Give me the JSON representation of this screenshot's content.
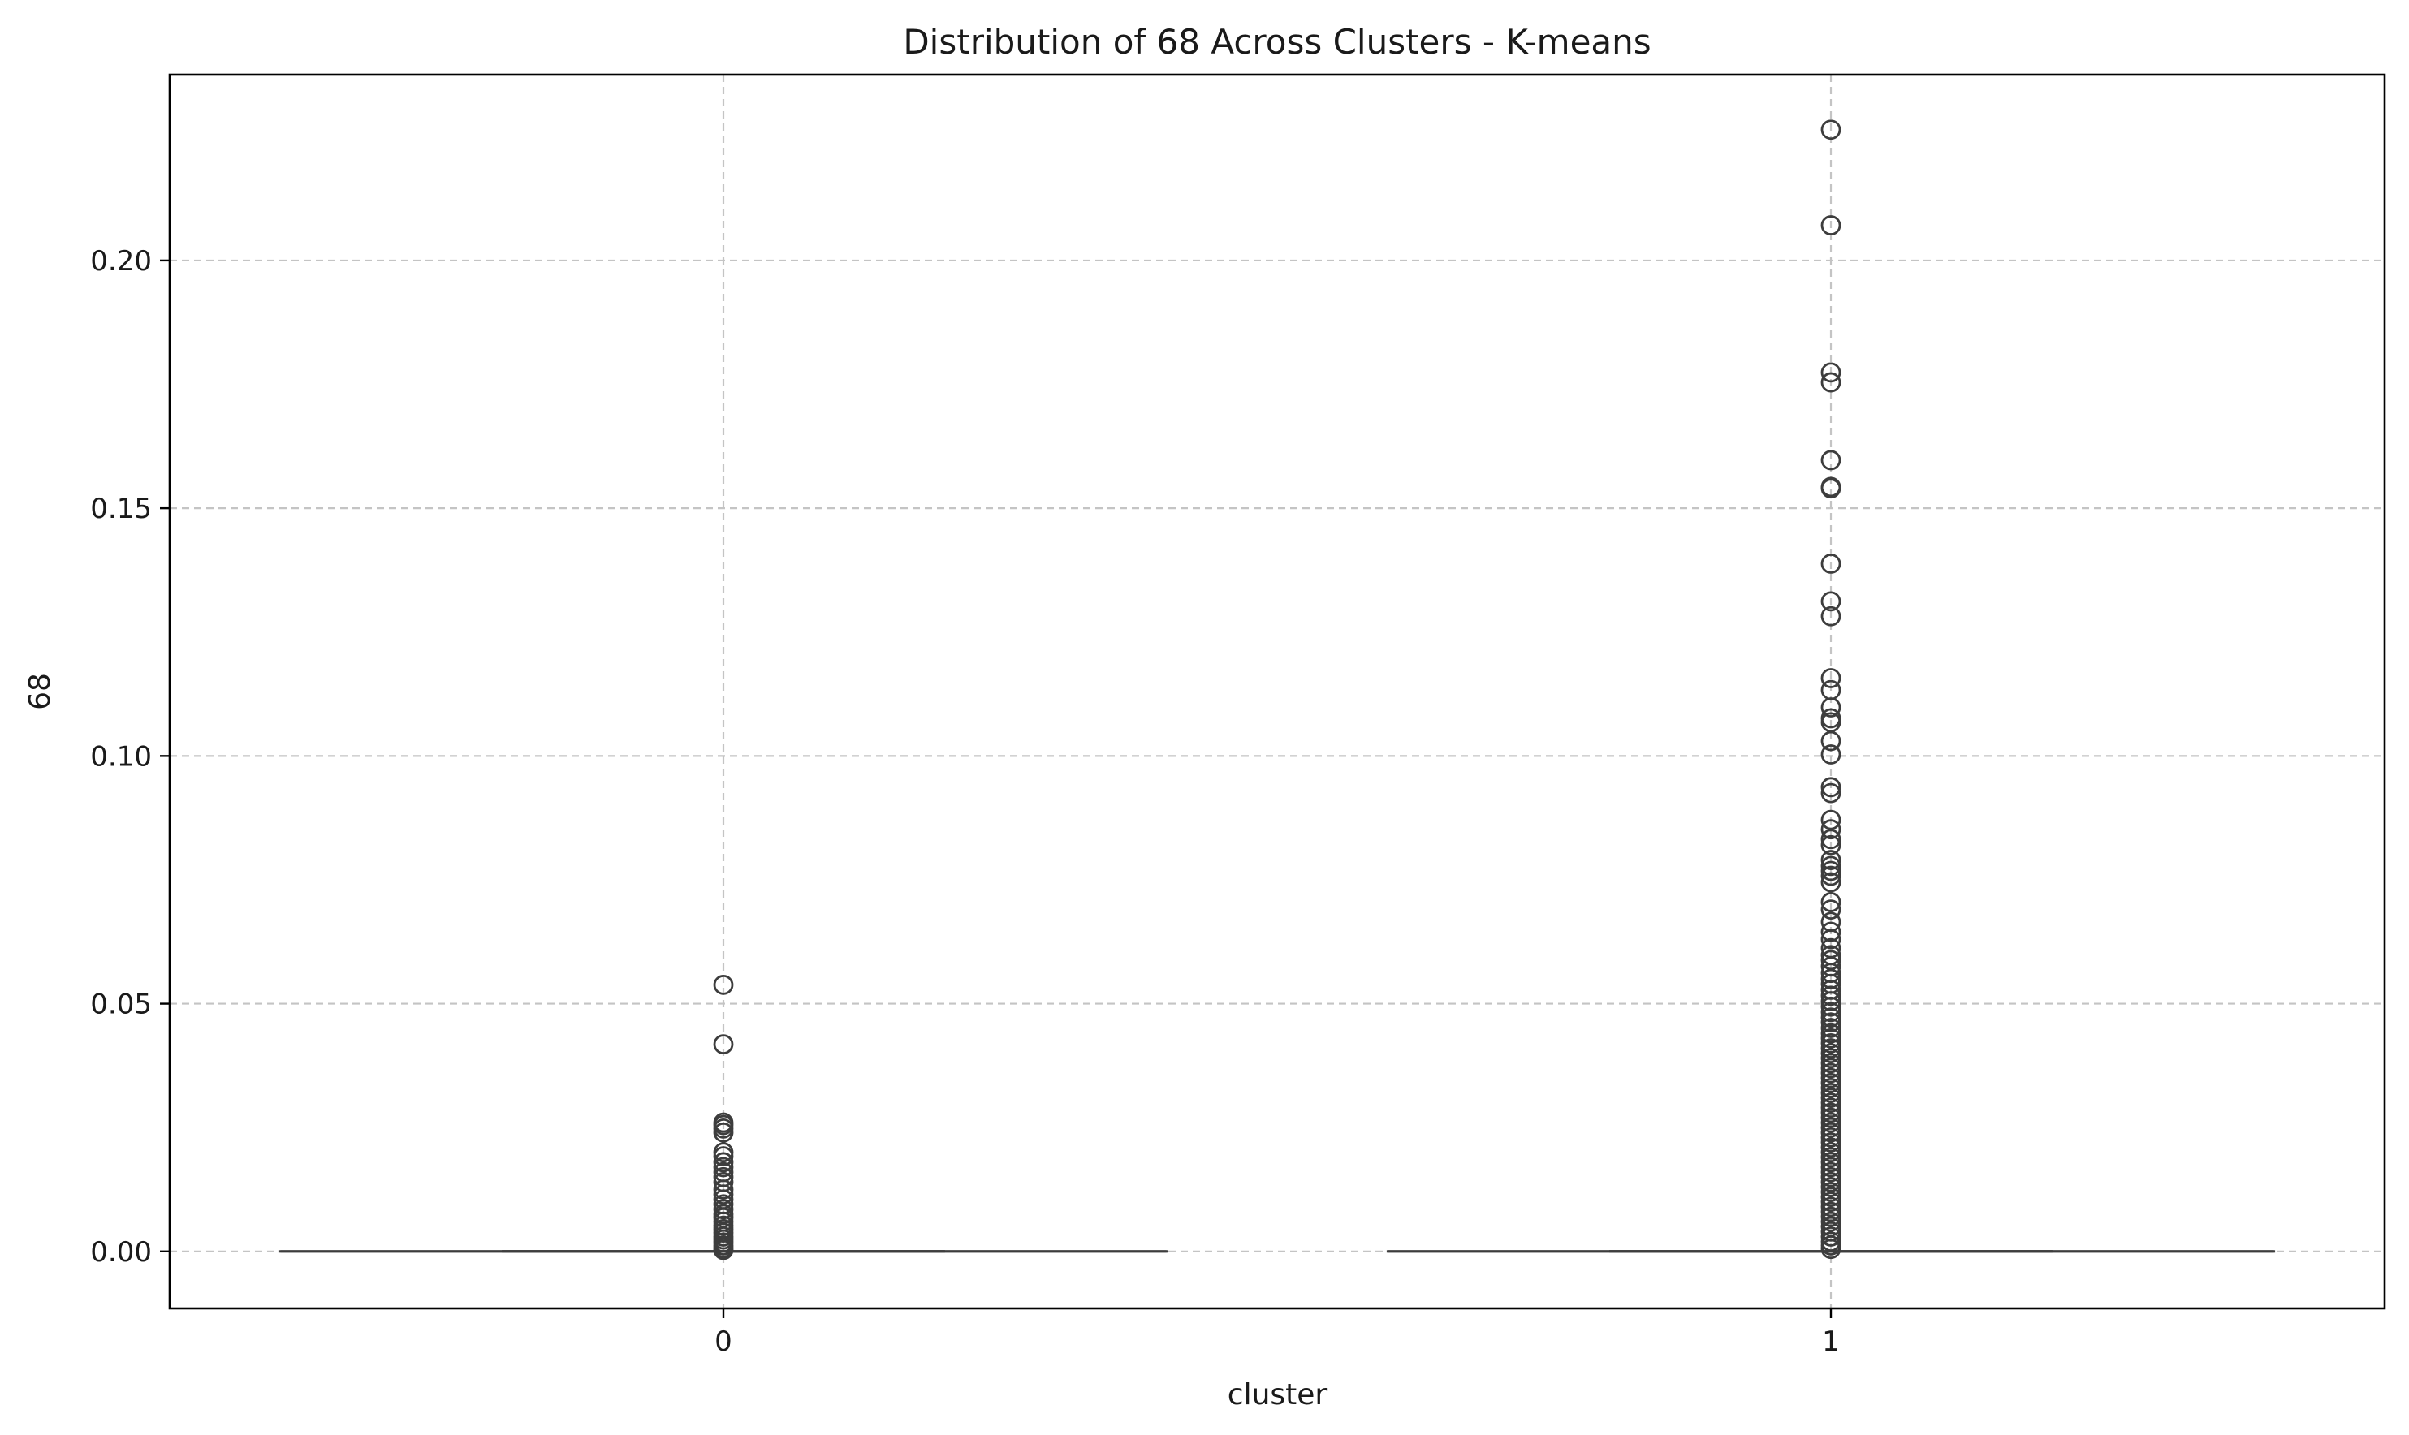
{
  "chart_data": {
    "type": "box",
    "title": "Distribution of 68 Across Clusters - K-means",
    "xlabel": "cluster",
    "ylabel": "68",
    "categories": [
      "0",
      "1"
    ],
    "ylim": [
      -0.0115,
      0.2375
    ],
    "yticks": [
      0.0,
      0.05,
      0.1,
      0.15,
      0.2
    ],
    "ytick_labels": [
      "0.00",
      "0.05",
      "0.10",
      "0.15",
      "0.20"
    ],
    "grid": true,
    "colors": {
      "box": "#3d3d3d",
      "grid": "#c4c4c4",
      "frame": "#000000"
    },
    "boxes": [
      {
        "category": "0",
        "q1": 0.0,
        "median": 0.0,
        "q3": 0.0,
        "whisker_low": 0.0,
        "whisker_high": 0.0,
        "outliers": [
          0.0538,
          0.0418,
          0.026,
          0.0255,
          0.0248,
          0.024,
          0.02,
          0.0192,
          0.018,
          0.017,
          0.016,
          0.015,
          0.014,
          0.0125,
          0.0115,
          0.0105,
          0.0095,
          0.0085,
          0.0075,
          0.0068,
          0.006,
          0.0052,
          0.0045,
          0.0038,
          0.003,
          0.0024,
          0.0018,
          0.0012,
          0.0007,
          0.0003
        ]
      },
      {
        "category": "1",
        "q1": 0.0,
        "median": 0.0,
        "q3": 0.0,
        "whisker_low": 0.0,
        "whisker_high": 0.0,
        "outliers": [
          0.2264,
          0.2071,
          0.1774,
          0.1754,
          0.1597,
          0.1543,
          0.154,
          0.1388,
          0.1312,
          0.1282,
          0.1157,
          0.1133,
          0.1098,
          0.1076,
          0.1068,
          0.103,
          0.1003,
          0.0937,
          0.0925,
          0.0871,
          0.0852,
          0.0832,
          0.082,
          0.079,
          0.0778,
          0.0768,
          0.0758,
          0.0745,
          0.0705,
          0.069,
          0.0665,
          0.0645,
          0.063,
          0.0612,
          0.0598,
          0.0588,
          0.0575,
          0.0562,
          0.055,
          0.054,
          0.0528,
          0.0516,
          0.0505,
          0.0494,
          0.0483,
          0.0472,
          0.0462,
          0.0451,
          0.044,
          0.043,
          0.042,
          0.041,
          0.04,
          0.039,
          0.038,
          0.037,
          0.036,
          0.035,
          0.034,
          0.033,
          0.032,
          0.031,
          0.03,
          0.029,
          0.028,
          0.027,
          0.026,
          0.025,
          0.024,
          0.023,
          0.022,
          0.021,
          0.02,
          0.019,
          0.018,
          0.017,
          0.016,
          0.015,
          0.014,
          0.013,
          0.012,
          0.011,
          0.01,
          0.009,
          0.008,
          0.007,
          0.006,
          0.005,
          0.004,
          0.003,
          0.002,
          0.0012,
          0.0005
        ]
      }
    ]
  }
}
